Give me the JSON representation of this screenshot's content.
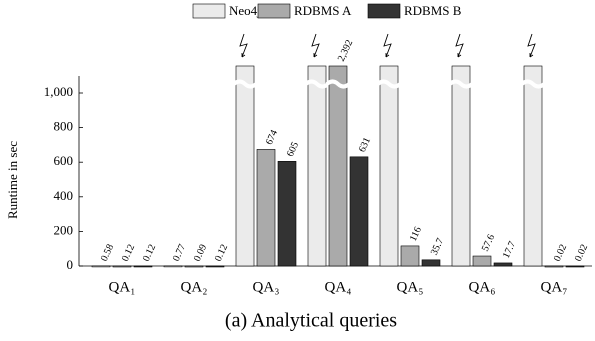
{
  "chart_data": {
    "type": "bar",
    "title": "(a) Analytical queries",
    "ylabel": "Runtime in sec",
    "categories": [
      "QA₁",
      "QA₂",
      "QA₃",
      "QA₄",
      "QA₅",
      "QA₆",
      "QA₇"
    ],
    "series": [
      {
        "name": "Neo4j",
        "color": "#ebebeb",
        "values": [
          0.58,
          0.77,
          null,
          null,
          null,
          null,
          null
        ],
        "timeout": [
          false,
          false,
          true,
          true,
          true,
          true,
          true
        ]
      },
      {
        "name": "RDBMS A",
        "color": "#aaaaaa",
        "values": [
          0.12,
          0.09,
          674,
          2392,
          116,
          57.6,
          0.02
        ],
        "value_labels": [
          "0.12",
          "0.09",
          "674",
          "2,392",
          "116",
          "57.6",
          "0.02"
        ]
      },
      {
        "name": "RDBMS B",
        "color": "#333333",
        "values": [
          0.12,
          0.12,
          605,
          631,
          35.7,
          17.7,
          0.02
        ]
      }
    ],
    "ylim": [
      0,
      1000
    ],
    "yticks": [
      0,
      200,
      400,
      600,
      800,
      {
        "value": 1000,
        "label": "1,000"
      }
    ],
    "legend": "top"
  }
}
